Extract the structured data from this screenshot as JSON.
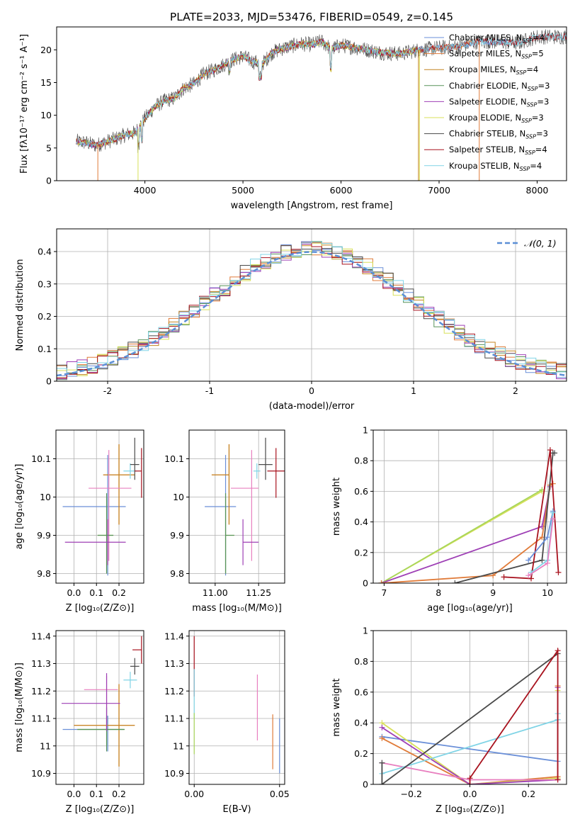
{
  "title": "PLATE=2033, MJD=53476, FIBERID=0549, z=0.145",
  "colors": {
    "Chabrier MILES": "#6a8fd8",
    "Salpeter MILES": "#e07b39",
    "Kroupa MILES": "#c48420",
    "Chabrier ELODIE": "#58935a",
    "Salpeter ELODIE": "#9e3fb5",
    "Kroupa ELODIE": "#d8e05a",
    "Chabrier STELIB": "#4a4a4a",
    "Salpeter STELIB": "#a8121e",
    "Kroupa STELIB": "#80d4e6",
    "pink": "#e87fbf",
    "lime": "#a8d65a",
    "normal_curve": "#5b8fd6"
  },
  "chart_data": [
    {
      "id": "spectrum",
      "type": "line",
      "xlabel": "wavelength [Angstrom, rest frame]",
      "ylabel": "Flux [fλ10⁻¹⁷ erg cm⁻² s⁻¹ A⁻¹]",
      "xlim": [
        3100,
        8300
      ],
      "ylim": [
        0,
        23.5
      ],
      "xticks": [
        4000,
        5000,
        6000,
        7000,
        8000
      ],
      "yticks": [
        0,
        5,
        10,
        15,
        20
      ],
      "legend_position": "top-right",
      "legend": [
        "Chabrier MILES, N_SSP=4",
        "Salpeter MILES, N_SSP=5",
        "Kroupa MILES, N_SSP=4",
        "Chabrier ELODIE, N_SSP=3",
        "Salpeter ELODIE, N_SSP=3",
        "Kroupa ELODIE, N_SSP=3",
        "Chabrier STELIB, N_SSP=3",
        "Salpeter STELIB, N_SSP=4",
        "Kroupa STELIB, N_SSP=4"
      ],
      "continuum": {
        "x": [
          3300,
          3400,
          3500,
          3600,
          3700,
          3800,
          3900,
          4000,
          4100,
          4200,
          4300,
          4400,
          4500,
          4600,
          4700,
          4800,
          4900,
          5000,
          5100,
          5200,
          5300,
          5400,
          5500,
          5600,
          5700,
          5800,
          5900,
          6000,
          6200,
          6400,
          6600,
          6800,
          7000,
          7200,
          7400,
          7600,
          7800,
          8000
        ],
        "y": [
          6.0,
          5.8,
          5.4,
          5.9,
          6.4,
          7.0,
          7.3,
          9.5,
          11.3,
          12.2,
          12.6,
          14.2,
          14.8,
          16.3,
          16.9,
          17.7,
          18.5,
          19.0,
          18.2,
          17.9,
          19.6,
          20.2,
          20.6,
          20.9,
          20.8,
          21.3,
          20.1,
          20.7,
          20.2,
          19.6,
          19.4,
          20.0,
          20.3,
          20.5,
          21.3,
          21.2,
          21.0,
          22.0
        ]
      },
      "noisy_series": "Chabrier STELIB"
    },
    {
      "id": "residuals",
      "type": "histogram",
      "xlabel": "(data-model)/error",
      "ylabel": "Normed distribution",
      "xlim": [
        -2.5,
        2.5
      ],
      "ylim": [
        0,
        0.47
      ],
      "xticks": [
        -2,
        -1,
        0,
        1,
        2
      ],
      "yticks": [
        0,
        0.1,
        0.2,
        0.3,
        0.4
      ],
      "grid": true,
      "legend_position": "top-right",
      "legend": [
        "𝒩(0, 1)"
      ],
      "bin_width": 0.1,
      "series_order": [
        "Chabrier MILES",
        "Salpeter MILES",
        "Kroupa MILES",
        "Chabrier ELODIE",
        "Salpeter ELODIE",
        "Kroupa ELODIE",
        "Chabrier STELIB",
        "Salpeter STELIB",
        "Kroupa STELIB"
      ],
      "reference_curve": "normal(0,1)"
    },
    {
      "id": "age_vs_Z",
      "type": "errorbar",
      "xlabel": "Z [log₁₀(Z/Z⊙)]",
      "ylabel": "age  [log₁₀(age/yr)]",
      "xlim": [
        -0.08,
        0.31
      ],
      "ylim": [
        9.775,
        10.175
      ],
      "xticks": [
        0.0,
        0.1,
        0.2
      ],
      "xtick_labels": [
        "0.0",
        "0.1",
        "0.2"
      ],
      "yticks": [
        9.8,
        9.9,
        10.0,
        10.1
      ],
      "grid": true,
      "points": [
        {
          "s": "Chabrier MILES",
          "x": 0.15,
          "xerr": [
            0.2,
            0.08
          ],
          "y": 9.975,
          "yerr": [
            0.18,
            0.135
          ]
        },
        {
          "s": "Salpeter MILES",
          "x": 0.2,
          "xerr": [
            0.07,
            0.07
          ],
          "y": 10.058,
          "yerr": [
            0.13,
            0.08
          ]
        },
        {
          "s": "Kroupa MILES",
          "x": 0.2,
          "xerr": [
            0.07,
            0.07
          ],
          "y": 10.058,
          "yerr": [
            0.13,
            0.08
          ]
        },
        {
          "s": "pink",
          "x": 0.155,
          "xerr": [
            0.09,
            0.1
          ],
          "y": 10.023,
          "yerr": [
            0.19,
            0.1
          ]
        },
        {
          "s": "lime",
          "x": 0.145,
          "xerr": [
            0.04,
            0.03
          ],
          "y": 9.9,
          "yerr": [
            0.1,
            0.1
          ]
        },
        {
          "s": "Chabrier ELODIE",
          "x": 0.145,
          "xerr": [
            0.04,
            0.03
          ],
          "y": 9.9,
          "yerr": [
            0.1,
            0.11
          ]
        },
        {
          "s": "Salpeter ELODIE",
          "x": 0.15,
          "xerr": [
            0.19,
            0.08
          ],
          "y": 9.882,
          "yerr": [
            0.06,
            0.06
          ]
        },
        {
          "s": "Kroupa STELIB",
          "x": 0.25,
          "xerr": [
            0.03,
            0.03
          ],
          "y": 10.068,
          "yerr": [
            0.02,
            0.02
          ]
        },
        {
          "s": "Chabrier STELIB",
          "x": 0.27,
          "xerr": [
            0.02,
            0.02
          ],
          "y": 10.085,
          "yerr": [
            0.04,
            0.07
          ]
        },
        {
          "s": "Salpeter STELIB",
          "x": 0.3,
          "xerr": [
            0.03,
            0.0
          ],
          "y": 10.068,
          "yerr": [
            0.07,
            0.06
          ]
        }
      ]
    },
    {
      "id": "age_vs_mass",
      "type": "errorbar",
      "xlabel": "mass [log₁₀(M/M⊙)]",
      "ylabel": "",
      "xlim": [
        10.85,
        11.4
      ],
      "ylim": [
        9.775,
        10.175
      ],
      "xticks": [
        11.0,
        11.25
      ],
      "xtick_labels": [
        "11.00",
        "11.25"
      ],
      "yticks": [
        9.8,
        9.9,
        10.0,
        10.1
      ],
      "grid": true,
      "points": [
        {
          "s": "Chabrier MILES",
          "x": 11.06,
          "xerr": [
            0.12,
            0.06
          ],
          "y": 9.975,
          "yerr": [
            0.18,
            0.135
          ]
        },
        {
          "s": "Salpeter MILES",
          "x": 11.08,
          "xerr": [
            0.1,
            0.0
          ],
          "y": 10.058,
          "yerr": [
            0.13,
            0.08
          ]
        },
        {
          "s": "Kroupa MILES",
          "x": 11.08,
          "xerr": [
            0.1,
            0.0
          ],
          "y": 10.058,
          "yerr": [
            0.13,
            0.08
          ]
        },
        {
          "s": "pink",
          "x": 11.21,
          "xerr": [
            0.12,
            0.04
          ],
          "y": 10.023,
          "yerr": [
            0.19,
            0.1
          ]
        },
        {
          "s": "lime",
          "x": 11.06,
          "xerr": [
            0.0,
            0.05
          ],
          "y": 9.9,
          "yerr": [
            0.1,
            0.1
          ]
        },
        {
          "s": "Chabrier ELODIE",
          "x": 11.06,
          "xerr": [
            0.0,
            0.05
          ],
          "y": 9.9,
          "yerr": [
            0.1,
            0.11
          ]
        },
        {
          "s": "Salpeter ELODIE",
          "x": 11.16,
          "xerr": [
            0.0,
            0.09
          ],
          "y": 9.882,
          "yerr": [
            0.06,
            0.06
          ]
        },
        {
          "s": "Kroupa STELIB",
          "x": 11.24,
          "xerr": [
            0.02,
            0.02
          ],
          "y": 10.068,
          "yerr": [
            0.02,
            0.02
          ]
        },
        {
          "s": "Chabrier STELIB",
          "x": 11.29,
          "xerr": [
            0.04,
            0.04
          ],
          "y": 10.085,
          "yerr": [
            0.04,
            0.07
          ]
        },
        {
          "s": "Salpeter STELIB",
          "x": 11.35,
          "xerr": [
            0.05,
            0.05
          ],
          "y": 10.068,
          "yerr": [
            0.07,
            0.06
          ]
        }
      ]
    },
    {
      "id": "weight_vs_age",
      "type": "line",
      "xlabel": "age  [log₁₀(age/yr)]",
      "ylabel": "mass weight",
      "xlim": [
        6.8,
        10.35
      ],
      "ylim": [
        0,
        1.0
      ],
      "xticks": [
        7,
        8,
        9,
        10
      ],
      "yticks": [
        0,
        0.2,
        0.4,
        0.6,
        0.8,
        1.0
      ],
      "grid": true,
      "series": [
        {
          "s": "Kroupa ELODIE",
          "x": [
            6.95,
            9.9
          ],
          "y": [
            0.0,
            0.6
          ]
        },
        {
          "s": "lime",
          "x": [
            6.95,
            9.9
          ],
          "y": [
            0.0,
            0.61
          ]
        },
        {
          "s": "Salpeter ELODIE",
          "x": [
            6.95,
            9.9,
            10.05
          ],
          "y": [
            0.0,
            0.37,
            0.63
          ]
        },
        {
          "s": "Salpeter MILES",
          "x": [
            6.95,
            9.0,
            9.9,
            10.05,
            10.1
          ],
          "y": [
            0.0,
            0.05,
            0.3,
            0.64,
            0.65
          ]
        },
        {
          "s": "Chabrier STELIB",
          "x": [
            8.3,
            9.9,
            10.1,
            10.13
          ],
          "y": [
            0.0,
            0.15,
            0.85,
            0.85
          ]
        },
        {
          "s": "Salpeter STELIB",
          "x": [
            9.2,
            9.7,
            10.05,
            10.2
          ],
          "y": [
            0.04,
            0.03,
            0.87,
            0.07
          ]
        },
        {
          "s": "Chabrier MILES",
          "x": [
            9.65,
            10.0,
            10.1
          ],
          "y": [
            0.15,
            0.3,
            0.47
          ]
        },
        {
          "s": "Kroupa STELIB",
          "x": [
            9.7,
            10.0,
            10.1
          ],
          "y": [
            0.07,
            0.15,
            0.46
          ]
        },
        {
          "s": "pink",
          "x": [
            9.65,
            10.0,
            10.1
          ],
          "y": [
            0.05,
            0.13,
            0.42
          ]
        }
      ]
    },
    {
      "id": "mass_vs_Z",
      "type": "errorbar",
      "xlabel": "Z [log₁₀(Z/Z⊙)]",
      "ylabel": "mass [log₁₀(M/M⊙)]",
      "xlim": [
        -0.08,
        0.31
      ],
      "ylim": [
        10.86,
        11.42
      ],
      "xticks": [
        0.0,
        0.1,
        0.2
      ],
      "xtick_labels": [
        "0.0",
        "0.1",
        "0.2"
      ],
      "yticks": [
        10.9,
        11.0,
        11.1,
        11.2,
        11.3,
        11.4
      ],
      "grid": true,
      "points": [
        {
          "s": "Chabrier MILES",
          "x": 0.15,
          "xerr": [
            0.2,
            0.07
          ],
          "y": 11.06,
          "yerr": [
            0.08,
            0.05
          ]
        },
        {
          "s": "Salpeter MILES",
          "x": 0.2,
          "xerr": [
            0.2,
            0.07
          ],
          "y": 11.075,
          "yerr": [
            0.15,
            0.15
          ]
        },
        {
          "s": "Kroupa MILES",
          "x": 0.2,
          "xerr": [
            0.2,
            0.07
          ],
          "y": 11.075,
          "yerr": [
            0.15,
            0.15
          ]
        },
        {
          "s": "pink",
          "x": 0.145,
          "xerr": [
            0.1,
            0.05
          ],
          "y": 11.205,
          "yerr": [
            0.15,
            0.05
          ]
        },
        {
          "s": "lime",
          "x": 0.145,
          "xerr": [
            0.13,
            0.08
          ],
          "y": 11.06,
          "yerr": [
            0.06,
            0.05
          ]
        },
        {
          "s": "Chabrier ELODIE",
          "x": 0.145,
          "xerr": [
            0.13,
            0.08
          ],
          "y": 11.06,
          "yerr": [
            0.08,
            0.08
          ]
        },
        {
          "s": "Salpeter ELODIE",
          "x": 0.145,
          "xerr": [
            0.2,
            0.06
          ],
          "y": 11.155,
          "yerr": [
            0.1,
            0.11
          ]
        },
        {
          "s": "Kroupa STELIB",
          "x": 0.25,
          "xerr": [
            0.03,
            0.03
          ],
          "y": 11.24,
          "yerr": [
            0.03,
            0.03
          ]
        },
        {
          "s": "Chabrier STELIB",
          "x": 0.27,
          "xerr": [
            0.02,
            0.02
          ],
          "y": 11.29,
          "yerr": [
            0.03,
            0.03
          ]
        },
        {
          "s": "Salpeter STELIB",
          "x": 0.3,
          "xerr": [
            0.04,
            0.0
          ],
          "y": 11.35,
          "yerr": [
            0.05,
            0.05
          ]
        }
      ]
    },
    {
      "id": "mass_vs_ebv",
      "type": "errorbar",
      "xlabel": "E(B-V)",
      "ylabel": "",
      "xlim": [
        -0.003,
        0.053
      ],
      "ylim": [
        10.86,
        11.42
      ],
      "xticks": [
        0.0,
        0.05
      ],
      "xtick_labels": [
        "0.00",
        "0.05"
      ],
      "yticks": [
        10.9,
        11.0,
        11.1,
        11.2,
        11.3,
        11.4
      ],
      "grid": true,
      "points": [
        {
          "s": "Salpeter STELIB",
          "x": 0.0,
          "xerr": [
            0,
            0
          ],
          "y": 11.3,
          "yerr": [
            0.12,
            0.1
          ]
        },
        {
          "s": "Kroupa STELIB",
          "x": 0.0,
          "xerr": [
            0,
            0
          ],
          "y": 11.2,
          "yerr": [
            0.1,
            0.08
          ]
        },
        {
          "s": "lime",
          "x": 0.0,
          "xerr": [
            0,
            0
          ],
          "y": 11.05,
          "yerr": [
            0.08,
            0.07
          ]
        },
        {
          "s": "pink",
          "x": 0.037,
          "xerr": [
            0,
            0
          ],
          "y": 11.14,
          "yerr": [
            0.12,
            0.12
          ]
        },
        {
          "s": "Salpeter MILES",
          "x": 0.046,
          "xerr": [
            0,
            0
          ],
          "y": 11.015,
          "yerr": [
            0.1,
            0.1
          ]
        },
        {
          "s": "Chabrier MILES",
          "x": 0.05,
          "xerr": [
            0,
            0
          ],
          "y": 11.0,
          "yerr": [
            0.1,
            0.1
          ]
        }
      ]
    },
    {
      "id": "weight_vs_Z",
      "type": "line",
      "xlabel": "Z [log₁₀(Z/Z⊙)]",
      "ylabel": "mass weight",
      "xlim": [
        -0.33,
        0.33
      ],
      "ylim": [
        0,
        1.0
      ],
      "xticks": [
        -0.2,
        0.0,
        0.2
      ],
      "xtick_labels": [
        "−0.2",
        "0.0",
        "0.2"
      ],
      "yticks": [
        0,
        0.2,
        0.4,
        0.6,
        0.8,
        1.0
      ],
      "grid": true,
      "series": [
        {
          "s": "Chabrier MILES",
          "x": [
            -0.3,
            0.3,
            0.3
          ],
          "y": [
            0.31,
            0.15,
            0.42
          ]
        },
        {
          "s": "Salpeter MILES",
          "x": [
            -0.3,
            0.0,
            0.3,
            0.3
          ],
          "y": [
            0.3,
            0.0,
            0.05,
            0.64
          ]
        },
        {
          "s": "Kroupa ELODIE",
          "x": [
            -0.3,
            0.0,
            0.3,
            0.3
          ],
          "y": [
            0.4,
            0.0,
            0.04,
            0.61
          ]
        },
        {
          "s": "Salpeter ELODIE",
          "x": [
            -0.3,
            0.0,
            0.3,
            0.3
          ],
          "y": [
            0.37,
            0.0,
            0.03,
            0.63
          ]
        },
        {
          "s": "pink",
          "x": [
            -0.3,
            0.0,
            0.3
          ],
          "y": [
            0.14,
            0.03,
            0.03
          ]
        },
        {
          "s": "Kroupa STELIB",
          "x": [
            -0.3,
            0.3,
            0.3
          ],
          "y": [
            0.07,
            0.42,
            0.46
          ]
        },
        {
          "s": "Chabrier STELIB",
          "x": [
            -0.3,
            -0.3,
            0.3
          ],
          "y": [
            0.14,
            0.0,
            0.85
          ]
        },
        {
          "s": "Salpeter STELIB",
          "x": [
            0.0,
            0.0,
            0.3,
            0.3
          ],
          "y": [
            0.0,
            0.04,
            0.87,
            0.03
          ]
        }
      ]
    }
  ]
}
